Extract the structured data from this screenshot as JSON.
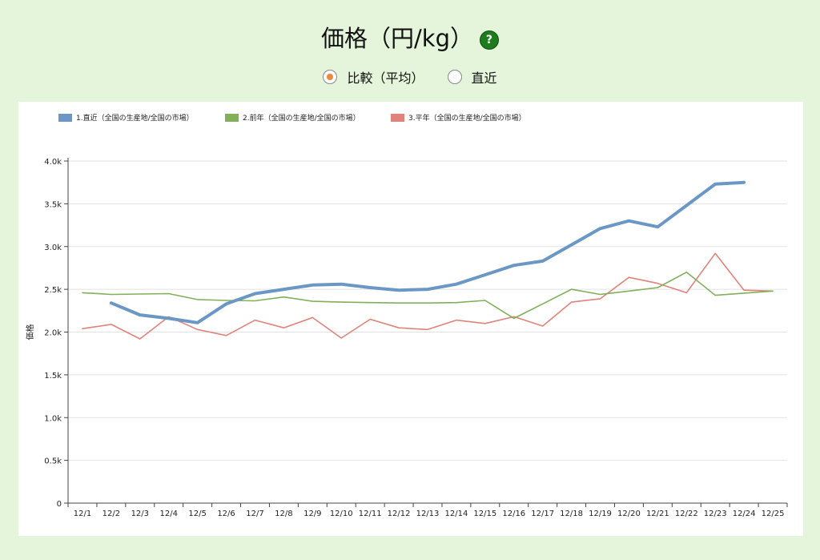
{
  "header": {
    "title": "価格（円/kg）",
    "help_icon": "?"
  },
  "mode_options": [
    {
      "label": "比較（平均）",
      "selected": true
    },
    {
      "label": "直近",
      "selected": false
    }
  ],
  "chart_data": {
    "type": "line",
    "ylabel": "価格",
    "ylim": [
      0,
      4000
    ],
    "yticks": [
      "0",
      "0.5k",
      "1.0k",
      "1.5k",
      "2.0k",
      "2.5k",
      "3.0k",
      "3.5k",
      "4.0k"
    ],
    "categories": [
      "12/1",
      "12/2",
      "12/3",
      "12/4",
      "12/5",
      "12/6",
      "12/7",
      "12/8",
      "12/9",
      "12/10",
      "12/11",
      "12/12",
      "12/13",
      "12/14",
      "12/15",
      "12/16",
      "12/17",
      "12/18",
      "12/19",
      "12/20",
      "12/21",
      "12/22",
      "12/23",
      "12/24",
      "12/25"
    ],
    "legend_position": "top-left",
    "series": [
      {
        "name": "1.直近（全国の生産地/全国の市場）",
        "color": "#6b97c4",
        "values": [
          null,
          2340,
          2200,
          2160,
          2110,
          2330,
          2450,
          2500,
          2550,
          2560,
          2520,
          2490,
          2500,
          2560,
          2670,
          2780,
          2830,
          3020,
          3210,
          3300,
          3230,
          3480,
          3730,
          3750,
          null
        ]
      },
      {
        "name": "2.前年（全国の生産地/全国の市場）",
        "color": "#82b05a",
        "values": [
          2460,
          2440,
          2445,
          2450,
          2380,
          2370,
          2365,
          2410,
          2360,
          2350,
          2345,
          2340,
          2340,
          2345,
          2370,
          2160,
          2330,
          2500,
          2440,
          2480,
          2520,
          2700,
          2430,
          2455,
          2480
        ]
      },
      {
        "name": "3.平年（全国の生産地/全国の市場）",
        "color": "#e0837a",
        "values": [
          2040,
          2090,
          1920,
          2180,
          2030,
          1960,
          2140,
          2050,
          2170,
          1930,
          2150,
          2050,
          2030,
          2140,
          2100,
          2180,
          2070,
          2350,
          2390,
          2640,
          2570,
          2460,
          2920,
          2490,
          2480
        ]
      }
    ]
  }
}
